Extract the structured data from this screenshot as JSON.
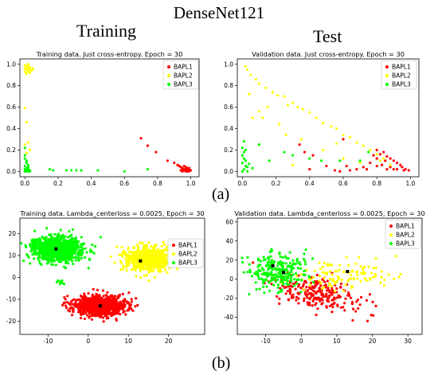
{
  "figure": {
    "title": "DenseNet121",
    "col_left": "Training",
    "col_right": "Test",
    "label_a": "(a)",
    "label_b": "(b)"
  },
  "colors": {
    "BAPL1": "#ff0000",
    "BAPL2": "#ffff00",
    "BAPL3": "#00ff00",
    "center": "#000000"
  },
  "chart_data": [
    {
      "id": "a-train",
      "type": "scatter",
      "title": "Training data. Just cross-entropy. Epoch = 30",
      "xlim": [
        -0.03,
        1.05
      ],
      "ylim": [
        -0.05,
        1.05
      ],
      "xticks": [
        0.0,
        0.2,
        0.4,
        0.6,
        0.8,
        1.0
      ],
      "yticks": [
        0.0,
        0.2,
        0.4,
        0.6,
        0.8,
        1.0
      ],
      "tick_labels_x": [
        "0.0",
        "0.2",
        "0.4",
        "0.6",
        "0.8",
        "1.0"
      ],
      "tick_labels_y": [
        "0.0",
        "0.2",
        "0.4",
        "0.6",
        "0.8",
        "1.0"
      ],
      "legend": [
        "BAPL1",
        "BAPL2",
        "BAPL3"
      ],
      "legend_position": "top-right",
      "series": [
        {
          "name": "BAPL1",
          "points": [
            [
              0.95,
              0.02
            ],
            [
              0.96,
              0.01
            ],
            [
              0.97,
              0.03
            ],
            [
              0.98,
              0.0
            ],
            [
              0.99,
              0.02
            ],
            [
              0.94,
              0.04
            ],
            [
              0.96,
              0.05
            ],
            [
              0.97,
              0.0
            ],
            [
              0.98,
              0.03
            ],
            [
              0.95,
              0.0
            ],
            [
              0.99,
              0.0
            ],
            [
              0.93,
              0.05
            ],
            [
              0.92,
              0.06
            ],
            [
              0.94,
              0.01
            ],
            [
              0.97,
              0.04
            ],
            [
              0.96,
              0.02
            ],
            [
              0.98,
              0.01
            ],
            [
              1.0,
              0.01
            ],
            [
              0.9,
              0.08
            ],
            [
              0.7,
              0.31
            ],
            [
              0.74,
              0.24
            ],
            [
              0.79,
              0.18
            ],
            [
              0.86,
              0.1
            ],
            [
              0.95,
              0.03
            ],
            [
              0.99,
              0.03
            ],
            [
              0.97,
              0.02
            ]
          ]
        },
        {
          "name": "BAPL2",
          "points": [
            [
              0.0,
              0.99
            ],
            [
              0.01,
              0.98
            ],
            [
              0.02,
              0.96
            ],
            [
              0.03,
              0.95
            ],
            [
              0.0,
              0.93
            ],
            [
              0.01,
              0.91
            ],
            [
              0.02,
              1.0
            ],
            [
              0.03,
              0.97
            ],
            [
              0.04,
              0.94
            ],
            [
              0.0,
              0.96
            ],
            [
              0.01,
              0.95
            ],
            [
              0.02,
              0.93
            ],
            [
              0.03,
              0.92
            ],
            [
              0.05,
              0.96
            ],
            [
              0.0,
              0.59
            ],
            [
              0.01,
              0.46
            ],
            [
              0.02,
              0.27
            ],
            [
              0.0,
              0.25
            ],
            [
              0.03,
              0.2
            ],
            [
              0.01,
              0.17
            ],
            [
              0.04,
              0.95
            ],
            [
              0.02,
              0.98
            ]
          ]
        },
        {
          "name": "BAPL3",
          "points": [
            [
              0.0,
              0.0
            ],
            [
              0.01,
              0.01
            ],
            [
              0.02,
              0.0
            ],
            [
              0.0,
              0.02
            ],
            [
              0.01,
              0.03
            ],
            [
              0.02,
              0.02
            ],
            [
              0.03,
              0.01
            ],
            [
              0.0,
              0.05
            ],
            [
              0.01,
              0.1
            ],
            [
              0.0,
              0.15
            ],
            [
              0.02,
              0.06
            ],
            [
              0.0,
              0.22
            ],
            [
              0.01,
              0.0
            ],
            [
              0.02,
              0.04
            ],
            [
              0.03,
              0.0
            ],
            [
              0.15,
              0.02
            ],
            [
              0.17,
              0.01
            ],
            [
              0.25,
              0.01
            ],
            [
              0.28,
              0.01
            ],
            [
              0.31,
              0.01
            ],
            [
              0.34,
              0.01
            ],
            [
              0.44,
              0.01
            ],
            [
              0.6,
              0.0
            ],
            [
              0.74,
              0.02
            ],
            [
              0.01,
              0.08
            ],
            [
              0.0,
              0.12
            ]
          ]
        }
      ]
    },
    {
      "id": "a-test",
      "type": "scatter",
      "title": "Validation data. Just cross-entropy. Epoch = 30",
      "xlim": [
        -0.03,
        1.05
      ],
      "ylim": [
        -0.05,
        1.05
      ],
      "xticks": [
        0.0,
        0.2,
        0.4,
        0.6,
        0.8,
        1.0
      ],
      "yticks": [
        0.0,
        0.2,
        0.4,
        0.6,
        0.8,
        1.0
      ],
      "tick_labels_x": [
        "0.0",
        "0.2",
        "0.4",
        "0.6",
        "0.8",
        "1.0"
      ],
      "tick_labels_y": [
        "0.0",
        "0.2",
        "0.4",
        "0.6",
        "0.8",
        "1.0"
      ],
      "legend": [
        "BAPL1",
        "BAPL2",
        "BAPL3"
      ],
      "legend_position": "top-right",
      "series": [
        {
          "name": "BAPL1",
          "points": [
            [
              0.8,
              0.2
            ],
            [
              0.84,
              0.18
            ],
            [
              0.86,
              0.14
            ],
            [
              0.88,
              0.12
            ],
            [
              0.9,
              0.1
            ],
            [
              0.92,
              0.08
            ],
            [
              0.94,
              0.06
            ],
            [
              0.95,
              0.04
            ],
            [
              0.97,
              0.02
            ],
            [
              0.99,
              0.01
            ],
            [
              0.82,
              0.16
            ],
            [
              0.8,
              0.12
            ],
            [
              0.76,
              0.08
            ],
            [
              0.72,
              0.04
            ],
            [
              0.68,
              0.02
            ],
            [
              0.64,
              0.01
            ],
            [
              0.62,
              0.05
            ],
            [
              0.58,
              0.0
            ],
            [
              0.86,
              0.02
            ],
            [
              0.88,
              0.04
            ],
            [
              0.9,
              0.02
            ],
            [
              0.83,
              0.06
            ],
            [
              0.85,
              0.1
            ],
            [
              0.78,
              0.15
            ],
            [
              0.92,
              0.02
            ],
            [
              0.96,
              0.01
            ],
            [
              0.5,
              0.05
            ],
            [
              0.34,
              0.25
            ],
            [
              0.37,
              0.18
            ],
            [
              0.42,
              0.15
            ],
            [
              0.6,
              0.3
            ],
            [
              0.4,
              0.02
            ],
            [
              0.55,
              0.01
            ],
            [
              0.74,
              0.02
            ],
            [
              0.8,
              0.05
            ]
          ]
        },
        {
          "name": "BAPL2",
          "points": [
            [
              0.02,
              0.98
            ],
            [
              0.03,
              0.95
            ],
            [
              0.05,
              0.9
            ],
            [
              0.08,
              0.86
            ],
            [
              0.1,
              0.82
            ],
            [
              0.14,
              0.78
            ],
            [
              0.18,
              0.74
            ],
            [
              0.21,
              0.71
            ],
            [
              0.25,
              0.7
            ],
            [
              0.27,
              0.62
            ],
            [
              0.3,
              0.64
            ],
            [
              0.33,
              0.6
            ],
            [
              0.36,
              0.58
            ],
            [
              0.4,
              0.55
            ],
            [
              0.44,
              0.5
            ],
            [
              0.48,
              0.45
            ],
            [
              0.53,
              0.42
            ],
            [
              0.56,
              0.4
            ],
            [
              0.6,
              0.34
            ],
            [
              0.64,
              0.32
            ],
            [
              0.68,
              0.27
            ],
            [
              0.72,
              0.24
            ],
            [
              0.76,
              0.2
            ],
            [
              0.8,
              0.16
            ],
            [
              0.84,
              0.12
            ],
            [
              0.1,
              0.56
            ],
            [
              0.12,
              0.5
            ],
            [
              0.15,
              0.6
            ],
            [
              0.22,
              0.44
            ],
            [
              0.26,
              0.34
            ],
            [
              0.48,
              0.2
            ],
            [
              0.56,
              0.26
            ],
            [
              0.6,
              0.12
            ],
            [
              0.7,
              0.08
            ],
            [
              0.82,
              0.1
            ],
            [
              0.88,
              0.06
            ],
            [
              0.3,
              0.06
            ],
            [
              0.06,
              0.5
            ],
            [
              0.04,
              0.72
            ],
            [
              0.35,
              0.3
            ]
          ]
        },
        {
          "name": "BAPL3",
          "points": [
            [
              0.0,
              0.0
            ],
            [
              0.01,
              0.02
            ],
            [
              0.02,
              0.05
            ],
            [
              0.0,
              0.08
            ],
            [
              0.01,
              0.12
            ],
            [
              0.0,
              0.15
            ],
            [
              0.02,
              0.1
            ],
            [
              0.03,
              0.04
            ],
            [
              0.01,
              0.18
            ],
            [
              0.0,
              0.22
            ],
            [
              0.02,
              0.2
            ],
            [
              0.04,
              0.07
            ],
            [
              0.1,
              0.25
            ],
            [
              0.16,
              0.1
            ],
            [
              0.25,
              0.18
            ],
            [
              0.3,
              0.15
            ],
            [
              0.4,
              0.12
            ],
            [
              0.47,
              0.1
            ],
            [
              0.58,
              0.1
            ],
            [
              0.7,
              0.1
            ],
            [
              0.75,
              0.18
            ],
            [
              0.06,
              0.03
            ],
            [
              0.03,
              0.0
            ],
            [
              0.01,
              0.28
            ]
          ]
        }
      ]
    },
    {
      "id": "b-train",
      "type": "scatter",
      "title": "Training data. Lambda_centerloss = 0.0025, Epoch = 30",
      "xlim": [
        -17,
        29
      ],
      "ylim": [
        -26,
        27
      ],
      "xticks": [
        -10,
        0,
        10,
        20
      ],
      "yticks": [
        -20,
        -10,
        0,
        10,
        20
      ],
      "tick_labels_x": [
        "-10",
        "0",
        "10",
        "20"
      ],
      "tick_labels_y": [
        "-20",
        "-10",
        "0",
        "10",
        "20"
      ],
      "legend": [
        "BAPL1",
        "BAPL2",
        "BAPL3"
      ],
      "legend_position": "top-right",
      "clusters": [
        {
          "name": "BAPL1",
          "center": [
            3,
            -13
          ],
          "spread": [
            3.2,
            2.2
          ],
          "count": 950
        },
        {
          "name": "BAPL2",
          "center": [
            15,
            8
          ],
          "spread": [
            3.0,
            2.8
          ],
          "count": 700
        },
        {
          "name": "BAPL3",
          "center": [
            -8,
            13
          ],
          "spread": [
            3.2,
            2.8
          ],
          "count": 950
        }
      ],
      "extra_points": [
        {
          "name": "BAPL3",
          "points": [
            [
              -7,
              -2
            ],
            [
              -6.5,
              -2.5
            ],
            [
              -7.5,
              -1.5
            ],
            [
              -6,
              -3
            ],
            [
              -7,
              -3
            ],
            [
              -6.5,
              -1.5
            ],
            [
              -7.8,
              -2.2
            ]
          ]
        }
      ],
      "centers": [
        [
          3,
          -13
        ],
        [
          13,
          7.5
        ],
        [
          -8,
          13
        ]
      ]
    },
    {
      "id": "b-test",
      "type": "scatter",
      "title": "Validation data. Lambda_centerloss = 0.0025, Epoch = 30",
      "xlim": [
        -18,
        34
      ],
      "ylim": [
        -58,
        64
      ],
      "xticks": [
        -10,
        0,
        10,
        20,
        30
      ],
      "yticks": [
        -40,
        -20,
        0,
        20,
        40,
        60
      ],
      "tick_labels_x": [
        "-10",
        "0",
        "10",
        "20",
        "30"
      ],
      "tick_labels_y": [
        "-40",
        "-20",
        "0",
        "20",
        "40",
        "60"
      ],
      "legend": [
        "BAPL1",
        "BAPL2",
        "BAPL3"
      ],
      "legend_position": "top-right",
      "clusters": [
        {
          "name": "BAPL1",
          "center": [
            5,
            -15
          ],
          "spread": [
            6.5,
            9
          ],
          "count": 230
        },
        {
          "name": "BAPL2",
          "center": [
            12,
            5
          ],
          "spread": [
            8,
            9
          ],
          "count": 110
        },
        {
          "name": "BAPL3",
          "center": [
            -7,
            8
          ],
          "spread": [
            4.5,
            10
          ],
          "count": 240
        }
      ],
      "extra_points": [],
      "centers": [
        [
          -8,
          14
        ],
        [
          -5,
          7
        ],
        [
          13,
          8
        ]
      ]
    }
  ]
}
